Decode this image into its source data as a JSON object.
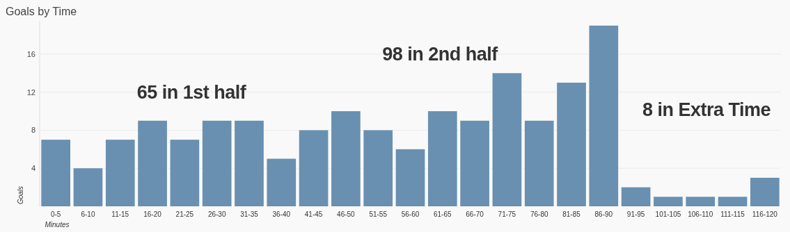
{
  "chart_data": {
    "type": "bar",
    "title": "Goals by Time",
    "xlabel": "Minutes",
    "ylabel": "Goals",
    "categories": [
      "0-5",
      "6-10",
      "11-15",
      "16-20",
      "21-25",
      "26-30",
      "31-35",
      "36-40",
      "41-45",
      "46-50",
      "51-55",
      "56-60",
      "61-65",
      "66-70",
      "71-75",
      "76-80",
      "81-85",
      "86-90",
      "91-95",
      "101-105",
      "106-110",
      "111-115",
      "116-120"
    ],
    "values": [
      7,
      4,
      7,
      9,
      7,
      9,
      9,
      5,
      8,
      10,
      8,
      6,
      10,
      9,
      14,
      9,
      13,
      19,
      2,
      1,
      1,
      1,
      3
    ],
    "color": "#6990b0",
    "ylim": [
      0,
      19.5
    ],
    "yticks": [
      4,
      8,
      12,
      16
    ],
    "grid": "y",
    "annotations": [
      "65 in 1st half",
      "98 in 2nd half",
      "8 in Extra Time"
    ]
  }
}
